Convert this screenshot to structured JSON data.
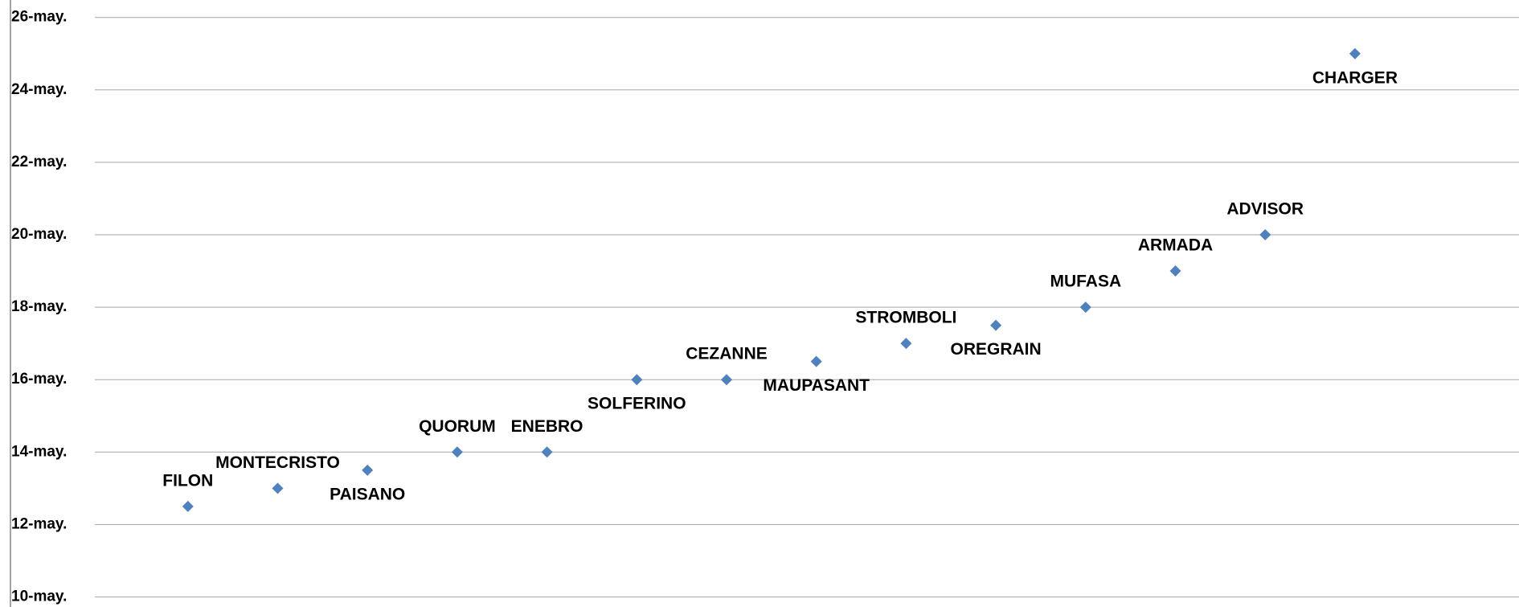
{
  "chart_data": {
    "type": "scatter",
    "categories": [
      "FILON",
      "MONTECRISTO",
      "PAISANO",
      "QUORUM",
      "ENEBRO",
      "SOLFERINO",
      "CEZANNE",
      "MAUPASANT",
      "STROMBOLI",
      "OREGRAIN",
      "MUFASA",
      "ARMADA",
      "ADVISOR",
      "CHARGER"
    ],
    "values": [
      12.5,
      13,
      13.5,
      14,
      14,
      16,
      16,
      16.5,
      17,
      17.5,
      18,
      19,
      20,
      25
    ],
    "color": "#4f81bd",
    "ylim": [
      10,
      26
    ],
    "yticks": [
      {
        "value": 10,
        "label": "10-may."
      },
      {
        "value": 12,
        "label": "12-may."
      },
      {
        "value": 14,
        "label": "14-may."
      },
      {
        "value": 16,
        "label": "16-may."
      },
      {
        "value": 18,
        "label": "18-may."
      },
      {
        "value": 20,
        "label": "20-may."
      },
      {
        "value": 22,
        "label": "22-may."
      },
      {
        "value": 24,
        "label": "24-may."
      },
      {
        "value": 26,
        "label": "26-may."
      }
    ],
    "grid": true
  }
}
